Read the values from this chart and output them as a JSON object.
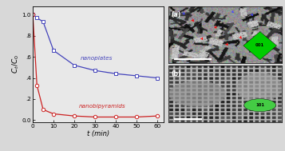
{
  "nanoplates_x": [
    0,
    2,
    5,
    10,
    20,
    30,
    40,
    50,
    60
  ],
  "nanoplates_y": [
    1.0,
    0.97,
    0.93,
    0.66,
    0.52,
    0.47,
    0.44,
    0.42,
    0.4
  ],
  "nanobipyramids_x": [
    0,
    2,
    5,
    10,
    20,
    30,
    40,
    50,
    60
  ],
  "nanobipyramids_y": [
    1.0,
    0.33,
    0.1,
    0.06,
    0.04,
    0.03,
    0.03,
    0.03,
    0.04
  ],
  "nanoplates_color": "#4444bb",
  "nanobipyramids_color": "#cc2222",
  "xlabel": "t (min)",
  "ylabel_latex": "$C_t/C_0$",
  "xlim": [
    0,
    63
  ],
  "ylim": [
    -0.02,
    1.08
  ],
  "xticks": [
    0,
    10,
    20,
    30,
    40,
    50,
    60
  ],
  "yticks": [
    0.0,
    0.2,
    0.4,
    0.6,
    0.8,
    1.0
  ],
  "ytick_labels": [
    "0.0",
    ".2",
    ".4",
    ".6",
    ".8",
    "1.0"
  ],
  "label_nanoplates": "nanoplates",
  "label_nanobipyramids": "nanobipyramids",
  "fig_bg": "#d8d8d8",
  "plot_bg": "#e8e8e8",
  "panel_a_label": "(a)",
  "panel_b_label": "(b)",
  "inset_a_text": "001",
  "inset_b_text": "101",
  "green_color": "#00cc00",
  "dark_green": "#008800"
}
